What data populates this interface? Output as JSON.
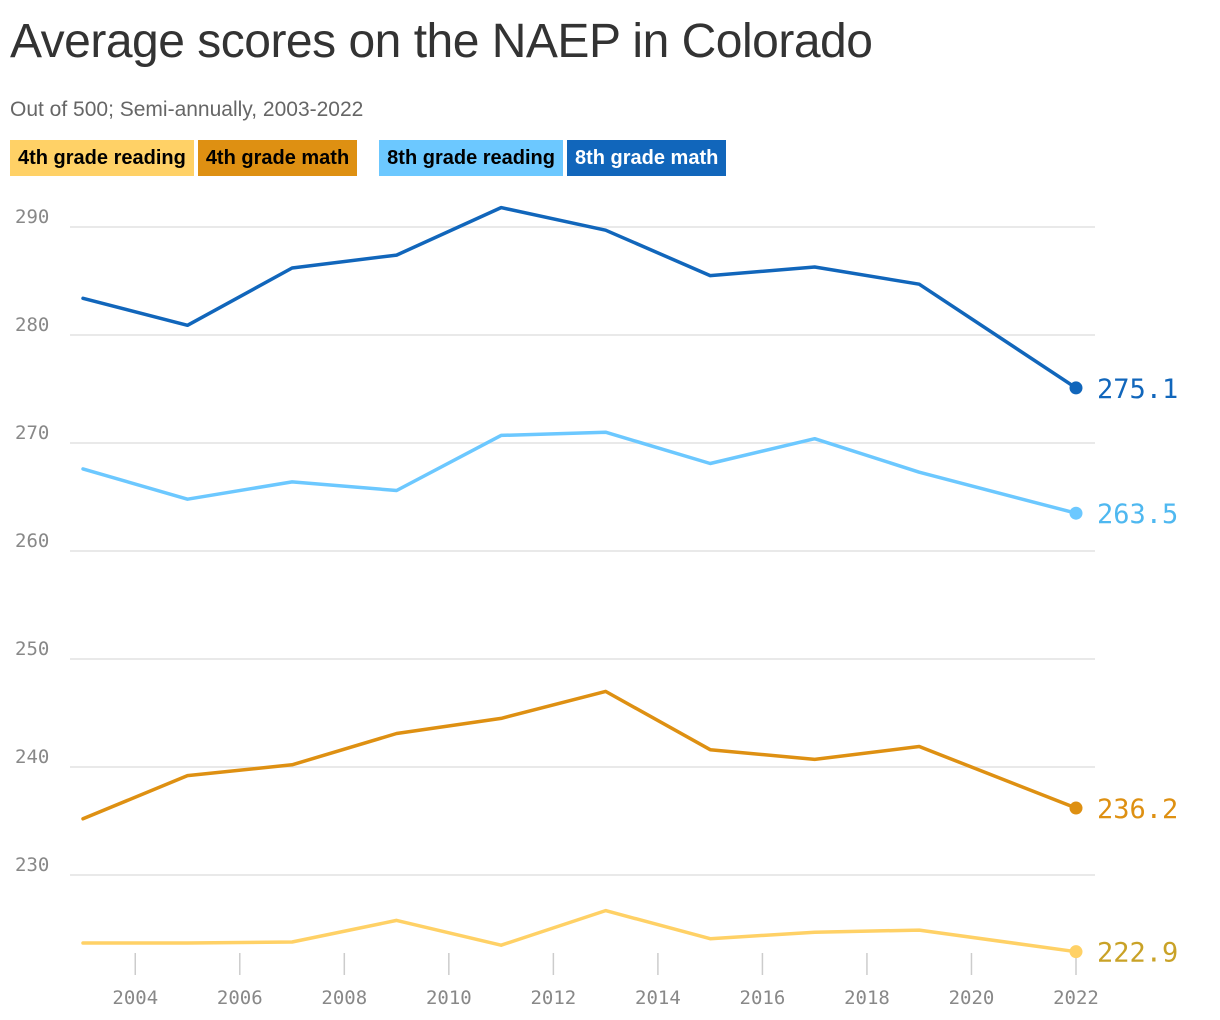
{
  "chart_data": {
    "type": "line",
    "title": "Average scores on the NAEP in Colorado",
    "subtitle": "Out of 500; Semi-annually, 2003-2022",
    "xlabel": "",
    "ylabel": "",
    "xlim": [
      2003,
      2022
    ],
    "ylim": [
      222,
      292
    ],
    "yticks": [
      230,
      240,
      250,
      260,
      270,
      280,
      290
    ],
    "xticks": [
      2004,
      2006,
      2008,
      2010,
      2012,
      2014,
      2016,
      2018,
      2020,
      2022
    ],
    "grid": true,
    "legend_position": "top-left",
    "x": [
      2003,
      2005,
      2007,
      2009,
      2011,
      2013,
      2015,
      2017,
      2019,
      2022
    ],
    "series": [
      {
        "name": "4th grade reading",
        "color": "#FFD166",
        "label_color": "#C9A227",
        "text_color": "#000000",
        "values": [
          223.7,
          223.7,
          223.8,
          225.8,
          223.5,
          226.7,
          224.1,
          224.7,
          224.9,
          222.9
        ],
        "end_label": "222.9"
      },
      {
        "name": "4th grade math",
        "color": "#DE9012",
        "label_color": "#DE9012",
        "text_color": "#000000",
        "values": [
          235.2,
          239.2,
          240.2,
          243.1,
          244.5,
          247.0,
          241.6,
          240.7,
          241.9,
          236.2
        ],
        "end_label": "236.2"
      },
      {
        "name": "8th grade reading",
        "color": "#6CC8FF",
        "label_color": "#4FB8F0",
        "text_color": "#000000",
        "values": [
          267.6,
          264.8,
          266.4,
          265.6,
          270.7,
          271.0,
          268.1,
          270.4,
          267.3,
          263.5
        ],
        "end_label": "263.5"
      },
      {
        "name": "8th grade math",
        "color": "#1166BB",
        "label_color": "#1166BB",
        "text_color": "#ffffff",
        "values": [
          283.4,
          280.9,
          286.2,
          287.4,
          291.8,
          289.7,
          285.5,
          286.3,
          284.7,
          275.1
        ],
        "end_label": "275.1"
      }
    ]
  }
}
